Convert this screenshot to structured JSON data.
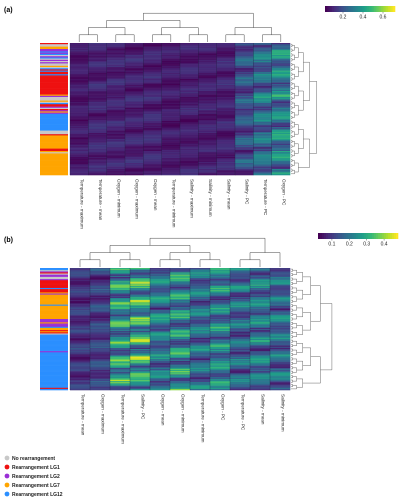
{
  "chart_data": [
    {
      "type": "heatmap",
      "panel_label": "(a)",
      "columns": [
        "Temperature - maximum",
        "Temperature - mean",
        "Oxygen - minimum",
        "Oxygen - maximum",
        "Oxygen - mean",
        "Temperature - minimum",
        "Salinity - maximum",
        "Salinity - minimum",
        "Salinity - mean",
        "Salinity - PC",
        "Temperature - PC",
        "Oxygen - PC"
      ],
      "column_means": [
        0.08,
        0.1,
        0.1,
        0.1,
        0.1,
        0.08,
        0.09,
        0.09,
        0.1,
        0.22,
        0.3,
        0.36
      ],
      "colorbar": {
        "ticks": [
          0.2,
          0.4,
          0.6
        ],
        "range": [
          0.02,
          0.72
        ]
      },
      "row_groups": [
        {
          "category": "No rearrangement",
          "fraction": 0.04
        },
        {
          "category": "mixed",
          "fraction": 0.18
        },
        {
          "category": "Rearrangement LG1",
          "fraction": 0.18
        },
        {
          "category": "mixed",
          "fraction": 0.14
        },
        {
          "category": "Rearrangement LG12",
          "fraction": 0.1
        },
        {
          "category": "mixed",
          "fraction": 0.08
        },
        {
          "category": "Rearrangement LG7",
          "fraction": 0.28
        }
      ]
    },
    {
      "type": "heatmap",
      "panel_label": "(b)",
      "columns": [
        "Temperature - mean",
        "Oxygen - maximum",
        "Temperature - maximum",
        "Salinity - PC",
        "Oxygen - mean",
        "Oxygen - minimum",
        "Temperature - minimum",
        "Oxygen - PC",
        "Temperature - PC",
        "Salinity - mean",
        "Salinity - minimum"
      ],
      "column_means": [
        0.1,
        0.12,
        0.3,
        0.32,
        0.22,
        0.27,
        0.2,
        0.24,
        0.2,
        0.22,
        0.2
      ],
      "colorbar": {
        "ticks": [
          0.1,
          0.2,
          0.3,
          0.4
        ],
        "range": [
          0.02,
          0.48
        ]
      },
      "row_groups": [
        {
          "category": "mixed",
          "fraction": 0.1
        },
        {
          "category": "Rearrangement LG1",
          "fraction": 0.1
        },
        {
          "category": "Rearrangement LG7",
          "fraction": 0.22
        },
        {
          "category": "Rearrangement LG2",
          "fraction": 0.06
        },
        {
          "category": "mixed",
          "fraction": 0.06
        },
        {
          "category": "Rearrangement LG12",
          "fraction": 0.46
        }
      ]
    }
  ],
  "legend": {
    "items": [
      {
        "label": "No rearrangement",
        "color": "#c8c8c8"
      },
      {
        "label": "Rearrangement LG1",
        "color": "#ee1111"
      },
      {
        "label": "Rearrangement LG2",
        "color": "#9a2fd6"
      },
      {
        "label": "Rearrangement LG7",
        "color": "#ffa500"
      },
      {
        "label": "Rearrangement LG12",
        "color": "#2b8fff"
      }
    ]
  },
  "colors": {
    "viridis_low": "#440154",
    "viridis_high": "#fde725"
  }
}
